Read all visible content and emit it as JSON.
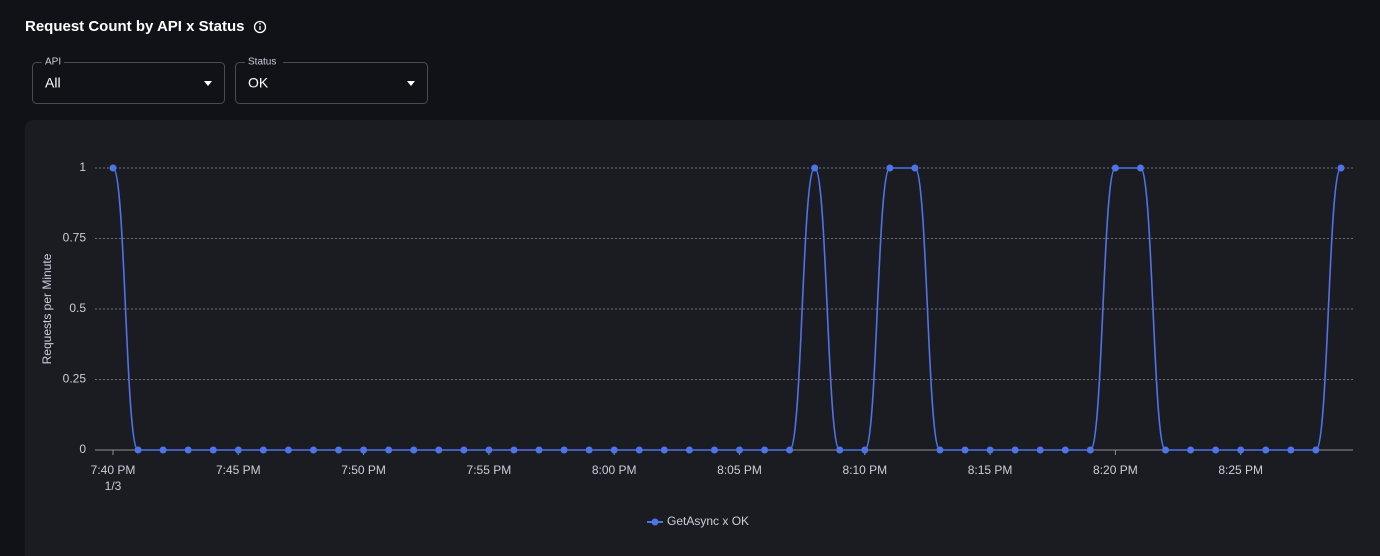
{
  "header": {
    "title": "Request Count by API x Status"
  },
  "filters": [
    {
      "label": "API",
      "value": "All"
    },
    {
      "label": "Status",
      "value": "OK"
    }
  ],
  "chart_data": {
    "type": "line",
    "y_label": "Requests per Minute",
    "categories": [
      "7:40 PM",
      null,
      null,
      null,
      null,
      "7:45 PM",
      null,
      null,
      null,
      null,
      "7:50 PM",
      null,
      null,
      null,
      null,
      "7:55 PM",
      null,
      null,
      null,
      null,
      "8:00 PM",
      null,
      null,
      null,
      null,
      "8:05 PM",
      null,
      null,
      null,
      null,
      "8:10 PM",
      null,
      null,
      null,
      null,
      "8:15 PM",
      null,
      null,
      null,
      null,
      "8:20 PM",
      null,
      null,
      null,
      null,
      "8:25 PM",
      null,
      null,
      null,
      null
    ],
    "x_date_label": "1/3",
    "series": [
      {
        "name": "GetAsync x OK",
        "color": "#4f73e8",
        "values": [
          1,
          0,
          0,
          0,
          0,
          0,
          0,
          0,
          0,
          0,
          0,
          0,
          0,
          0,
          0,
          0,
          0,
          0,
          0,
          0,
          0,
          0,
          0,
          0,
          0,
          0,
          0,
          0,
          1,
          0,
          0,
          1,
          1,
          0,
          0,
          0,
          0,
          0,
          0,
          0,
          1,
          1,
          0,
          0,
          0,
          0,
          0,
          0,
          0,
          1
        ]
      }
    ],
    "ylim": [
      0,
      1
    ],
    "yticks": [
      0,
      0.25,
      0.5,
      0.75,
      1
    ],
    "grid": true,
    "legend": "bottom"
  }
}
